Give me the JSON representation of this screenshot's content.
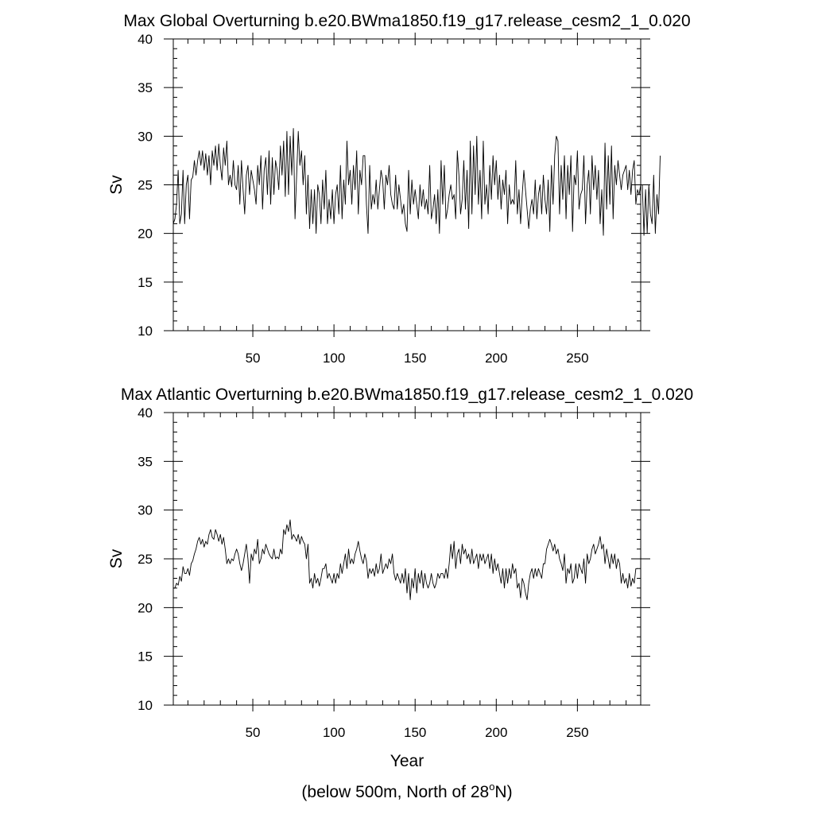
{
  "footnote": {
    "prefix": "(below 500m, North of 28",
    "sup": "o",
    "suffix": "N)"
  },
  "chart_data": [
    {
      "type": "line",
      "title": "Max Global Overturning b.e20.BWma1850.f19_g17.release_cesm2_1_0.020",
      "xlabel": "",
      "ylabel": "Sv",
      "xlim": [
        1,
        289
      ],
      "ylim": [
        10,
        40
      ],
      "xticks": [
        50,
        100,
        150,
        200,
        250
      ],
      "yticks": [
        10,
        15,
        20,
        25,
        30,
        35,
        40
      ],
      "xtick_labels": [
        "50",
        "100",
        "150",
        "200",
        "250"
      ],
      "ytick_labels": [
        "10",
        "15",
        "20",
        "25",
        "30",
        "35",
        "40"
      ],
      "line_color": "#000000",
      "x_start": 1,
      "y": [
        21.0,
        21.5,
        23.0,
        26.5,
        21.0,
        22.0,
        26.5,
        21.0,
        25.0,
        26.0,
        21.5,
        25.5,
        25.8,
        27.5,
        26.0,
        27.5,
        28.5,
        27.0,
        28.5,
        26.5,
        28.2,
        26.0,
        28.0,
        25.0,
        28.5,
        27.0,
        29.0,
        26.5,
        29.2,
        27.0,
        25.5,
        28.8,
        27.0,
        29.5,
        25.0,
        26.0,
        24.8,
        27.5,
        25.0,
        24.5,
        27.0,
        23.0,
        27.5,
        24.5,
        22.0,
        26.0,
        27.0,
        24.0,
        26.5,
        25.5,
        24.5,
        23.0,
        27.0,
        25.0,
        28.0,
        22.5,
        26.5,
        27.8,
        24.0,
        28.5,
        23.0,
        27.8,
        24.0,
        27.5,
        26.5,
        24.5,
        29.0,
        26.0,
        29.5,
        23.8,
        30.5,
        24.0,
        30.0,
        26.0,
        30.8,
        21.5,
        26.0,
        30.5,
        27.0,
        28.5,
        25.0,
        28.0,
        22.0,
        26.0,
        20.5,
        24.5,
        21.0,
        24.5,
        20.0,
        25.0,
        24.0,
        21.0,
        25.5,
        22.5,
        26.5,
        21.0,
        23.5,
        21.5,
        24.5,
        21.0,
        24.0,
        25.0,
        22.0,
        27.0,
        21.5,
        25.5,
        23.0,
        29.5,
        25.0,
        26.5,
        23.0,
        27.0,
        24.5,
        28.5,
        22.0,
        26.5,
        25.0,
        28.0,
        28.0,
        23.0,
        20.0,
        27.0,
        22.5,
        24.0,
        23.0,
        25.5,
        22.5,
        24.5,
        26.5,
        25.5,
        22.5,
        26.0,
        25.0,
        27.0,
        24.0,
        23.0,
        22.5,
        26.0,
        22.5,
        25.0,
        23.5,
        22.0,
        23.0,
        21.0,
        20.2,
        26.5,
        22.0,
        25.5,
        23.0,
        24.5,
        23.0,
        21.5,
        25.0,
        22.8,
        24.5,
        22.5,
        23.5,
        22.0,
        27.0,
        21.5,
        22.5,
        24.0,
        21.0,
        24.5,
        20.0,
        27.5,
        23.0,
        27.0,
        21.5,
        22.5,
        24.0,
        25.0,
        23.5,
        24.0,
        21.5,
        28.5,
        26.0,
        22.0,
        23.5,
        27.5,
        22.5,
        26.5,
        20.5,
        29.5,
        22.0,
        29.0,
        24.0,
        30.0,
        23.0,
        26.5,
        21.5,
        29.5,
        23.0,
        25.0,
        22.0,
        27.0,
        23.5,
        28.0,
        25.0,
        27.5,
        23.5,
        26.0,
        22.5,
        25.5,
        24.0,
        26.5,
        21.0,
        25.0,
        23.0,
        23.5,
        23.0,
        27.5,
        22.0,
        24.5,
        21.0,
        24.0,
        26.5,
        24.5,
        22.5,
        20.5,
        22.5,
        23.5,
        22.0,
        25.5,
        21.5,
        24.0,
        25.0,
        22.0,
        26.0,
        23.5,
        22.0,
        25.5,
        20.2,
        27.0,
        23.0,
        28.0,
        30.0,
        29.5,
        22.0,
        27.0,
        23.5,
        28.0,
        21.5,
        27.0,
        24.0,
        28.0,
        20.2,
        26.0,
        25.0,
        28.5,
        22.5,
        24.0,
        24.5,
        28.0,
        21.0,
        25.0,
        26.5,
        22.0,
        28.0,
        24.5,
        27.0,
        23.5,
        26.5,
        21.0,
        24.5,
        19.8,
        29.3,
        22.5,
        28.0,
        23.0,
        29.0,
        21.5,
        27.0,
        25.0,
        27.5,
        26.0,
        24.5,
        26.0,
        26.5,
        27.0,
        24.5,
        26.5,
        24.0,
        26.5,
        27.5,
        23.0,
        24.5,
        24.0,
        25.0,
        25.0,
        19.8,
        24.5,
        20.0,
        25.0,
        22.0,
        21.0,
        26.0,
        20.0,
        24.0,
        22.0,
        28.0
      ]
    },
    {
      "type": "line",
      "title": "Max Atlantic Overturning b.e20.BWma1850.f19_g17.release_cesm2_1_0.020",
      "xlabel": "Year",
      "ylabel": "Sv",
      "xlim": [
        1,
        289
      ],
      "ylim": [
        10,
        40
      ],
      "xticks": [
        50,
        100,
        150,
        200,
        250
      ],
      "yticks": [
        10,
        15,
        20,
        25,
        30,
        35,
        40
      ],
      "xtick_labels": [
        "50",
        "100",
        "150",
        "200",
        "250"
      ],
      "ytick_labels": [
        "10",
        "15",
        "20",
        "25",
        "30",
        "35",
        "40"
      ],
      "line_color": "#000000",
      "x_start": 1,
      "y": [
        22.0,
        22.0,
        22.5,
        22.3,
        23.2,
        22.7,
        24.2,
        23.5,
        23.5,
        24.0,
        23.3,
        24.5,
        24.8,
        25.5,
        26.0,
        26.8,
        27.2,
        26.5,
        27.0,
        26.2,
        26.8,
        26.5,
        27.5,
        28.0,
        27.2,
        27.0,
        28.0,
        27.5,
        26.8,
        27.5,
        26.5,
        27.2,
        26.0,
        24.5,
        25.0,
        24.5,
        25.0,
        24.8,
        25.5,
        26.0,
        25.5,
        24.5,
        23.8,
        24.5,
        25.5,
        26.5,
        25.0,
        22.5,
        25.5,
        24.8,
        26.0,
        25.5,
        27.0,
        24.5,
        25.0,
        26.0,
        25.5,
        26.5,
        26.0,
        25.5,
        25.2,
        25.0,
        26.0,
        25.0,
        25.2,
        25.0,
        26.0,
        25.5,
        28.0,
        27.5,
        28.5,
        27.8,
        29.0,
        27.0,
        27.5,
        27.2,
        26.8,
        27.5,
        26.5,
        27.3,
        26.8,
        26.5,
        25.0,
        26.5,
        22.5,
        23.0,
        22.0,
        23.5,
        22.5,
        23.0,
        22.2,
        23.0,
        24.0,
        24.0,
        24.5,
        23.0,
        23.5,
        23.0,
        22.5,
        23.5,
        22.5,
        23.5,
        23.0,
        24.5,
        23.5,
        24.5,
        25.5,
        24.0,
        26.0,
        24.5,
        25.0,
        24.5,
        25.5,
        26.0,
        26.8,
        25.8,
        25.0,
        24.5,
        25.5,
        24.8,
        23.0,
        24.0,
        23.5,
        24.0,
        23.2,
        24.5,
        23.5,
        24.0,
        25.5,
        23.5,
        24.0,
        24.5,
        24.0,
        25.0,
        24.5,
        25.5,
        23.5,
        22.8,
        23.5,
        23.0,
        22.5,
        23.5,
        22.5,
        24.0,
        21.5,
        23.5,
        20.8,
        23.0,
        22.0,
        24.0,
        21.5,
        23.5,
        22.5,
        23.8,
        22.0,
        23.5,
        22.5,
        22.0,
        22.5,
        23.5,
        22.5,
        22.0,
        22.5,
        23.5,
        23.0,
        23.5,
        23.5,
        23.0,
        24.0,
        23.0,
        24.5,
        26.5,
        25.0,
        26.8,
        24.0,
        25.5,
        26.0,
        24.5,
        26.5,
        25.5,
        26.0,
        25.0,
        25.5,
        24.5,
        26.0,
        24.5,
        25.0,
        25.5,
        24.0,
        25.5,
        24.8,
        25.5,
        24.5,
        25.0,
        25.5,
        24.0,
        25.5,
        23.5,
        25.0,
        23.8,
        24.5,
        23.5,
        22.5,
        24.0,
        22.0,
        24.0,
        22.5,
        24.0,
        23.0,
        24.5,
        23.5,
        24.0,
        22.0,
        22.5,
        21.0,
        23.0,
        22.5,
        21.5,
        20.8,
        22.5,
        23.5,
        24.0,
        23.0,
        24.0,
        23.2,
        24.0,
        23.5,
        23.0,
        24.5,
        24.5,
        26.0,
        26.5,
        27.0,
        26.5,
        25.8,
        26.5,
        25.5,
        26.0,
        25.0,
        24.5,
        23.8,
        25.5,
        22.5,
        24.0,
        23.5,
        24.5,
        22.5,
        23.0,
        24.5,
        23.0,
        24.5,
        24.0,
        23.5,
        25.0,
        22.5,
        25.5,
        24.5,
        25.0,
        26.0,
        26.5,
        25.5,
        26.0,
        26.5,
        27.3,
        26.0,
        26.5,
        24.5,
        26.0,
        25.0,
        24.0,
        25.5,
        24.5,
        25.5,
        24.0,
        25.0,
        24.5,
        22.5,
        23.5,
        22.5,
        23.0,
        22.0,
        23.5,
        22.2,
        23.0,
        22.5,
        24.0,
        24.0
      ]
    }
  ]
}
